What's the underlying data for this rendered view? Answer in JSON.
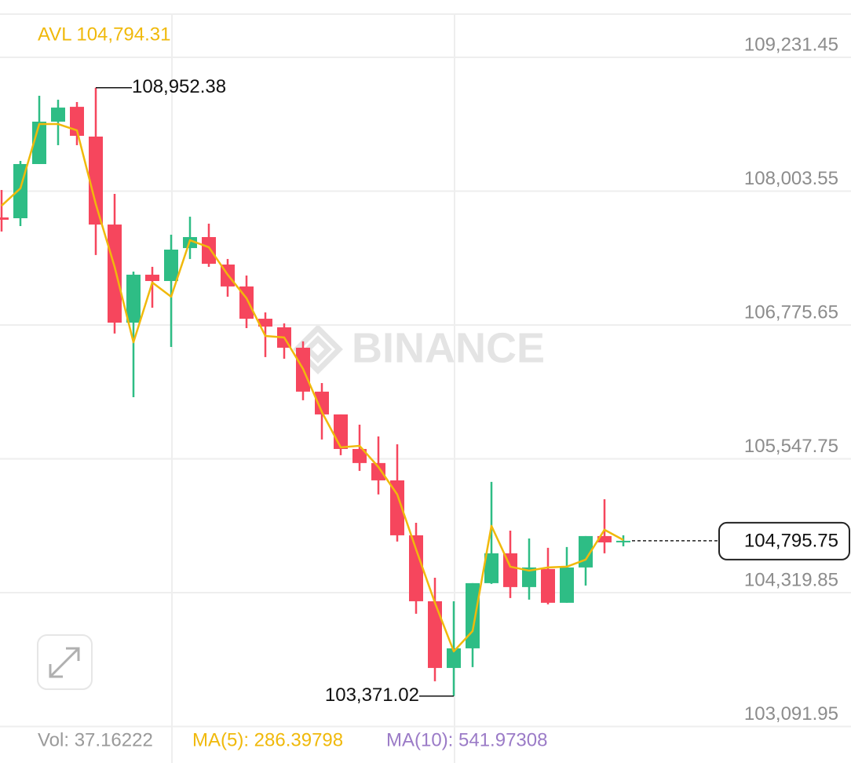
{
  "chart_data": {
    "type": "candlestick",
    "avl_label": "AVL 104,794.31",
    "watermark": "BINANCE",
    "up_color": "#2ebd85",
    "down_color": "#f6465d",
    "ylim": [
      103091.95,
      109627.4
    ],
    "yticks": [
      {
        "value": 109231.45,
        "label": "109,231.45"
      },
      {
        "value": 108003.55,
        "label": "108,003.55"
      },
      {
        "value": 106775.65,
        "label": "106,775.65"
      },
      {
        "value": 105547.75,
        "label": "105,547.75"
      },
      {
        "value": 104319.85,
        "label": "104,319.85"
      },
      {
        "value": 103091.95,
        "label": "103,091.95"
      }
    ],
    "grid": true,
    "candles": {
      "open": [
        107762,
        107755,
        108252,
        108641,
        108777,
        108504,
        107697,
        106797,
        107237,
        107179,
        107481,
        107582,
        107330,
        107129,
        106833,
        106754,
        106567,
        106164,
        105955,
        105638,
        105509,
        105350,
        104846,
        104241,
        103629,
        103809,
        104407,
        104681,
        104371,
        104537,
        104227,
        104551,
        104839,
        104789
      ],
      "high": [
        108014,
        108281,
        108878,
        108842,
        108821,
        108952.38,
        107978,
        107265,
        107309,
        107604,
        107769,
        107705,
        107381,
        107229,
        106891,
        106790,
        106625,
        106243,
        105955,
        105861,
        105753,
        105681,
        104961,
        104457,
        104241,
        104407,
        105336,
        104889,
        104817,
        104731,
        104738,
        104839,
        105177,
        104846
      ],
      "low": [
        107633,
        107683,
        108252,
        108425,
        108425,
        107417,
        106697,
        106113,
        106934,
        106574,
        107381,
        107309,
        107035,
        106747,
        106481,
        106466,
        106085,
        105725,
        105581,
        105437,
        105221,
        104789,
        104126,
        103507,
        103371.02,
        103637,
        104400,
        104270,
        104256,
        104213,
        104227,
        104385,
        104681,
        104745
      ],
      "close": [
        107741,
        108252,
        108641,
        108770,
        108511,
        107697,
        106797,
        107237,
        107179,
        107467,
        107582,
        107337,
        107129,
        106833,
        106761,
        106567,
        106164,
        105955,
        105638,
        105509,
        105350,
        104846,
        104241,
        103629,
        103809,
        104407,
        104681,
        104371,
        104551,
        104227,
        104551,
        104839,
        104781,
        104795.75
      ]
    },
    "line": {
      "color": "#f0b90b",
      "values": [
        107870,
        108029,
        108619,
        108619,
        108561,
        107885,
        107309,
        106617,
        107165,
        107035,
        107553,
        107489,
        107237,
        107021,
        106675,
        106661,
        106373,
        105977,
        105653,
        105667,
        105473,
        105221,
        104717,
        104227,
        103781,
        103968,
        104933,
        104558,
        104522,
        104551,
        104558,
        104623,
        104897,
        104803
      ]
    },
    "high_annotation": {
      "value": 108952.38,
      "label": "108,952.38"
    },
    "low_annotation": {
      "value": 103371.02,
      "label": "103,371.02"
    },
    "last_price": {
      "value": 104795.75,
      "label": "104,795.75"
    },
    "indicators": [
      {
        "label": "Vol: 37.16222",
        "color": "#9a9a9a"
      },
      {
        "label": "MA(5): 286.39798",
        "color": "#f0b90b"
      },
      {
        "label": "MA(10): 541.97308",
        "color": "#9b7bc7"
      }
    ]
  }
}
